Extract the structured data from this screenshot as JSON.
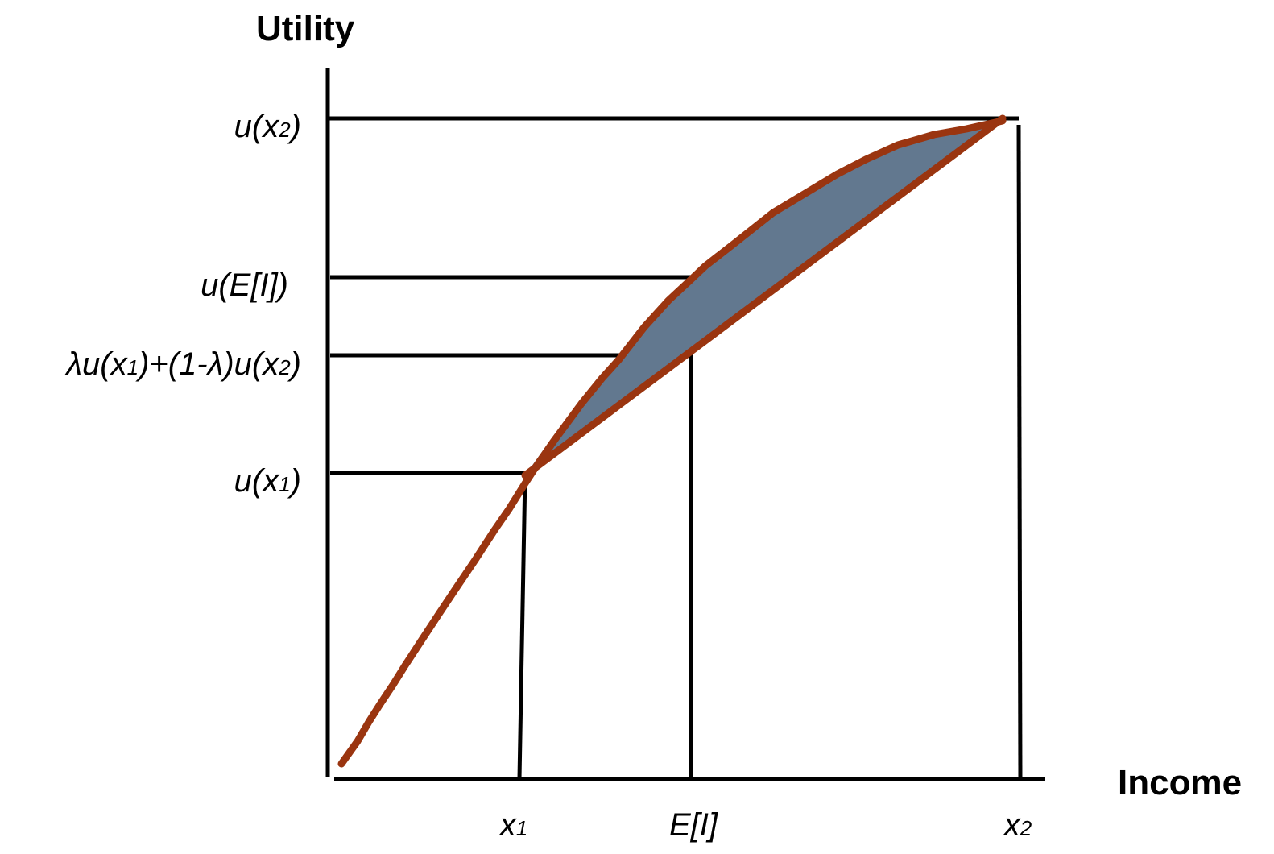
{
  "axes": {
    "y_title": "Utility",
    "x_title": "Income"
  },
  "y_labels": {
    "u_x2": {
      "main": "u(x",
      "sub": "2",
      "tail": ")"
    },
    "u_EI": {
      "text": "u(E[I])"
    },
    "lambda_combo": {
      "part1": "λu(x",
      "sub1": "1",
      "part2": ")+(1-λ)u(x",
      "sub2": "2",
      "part3": ")"
    },
    "u_x1": {
      "main": "u(x",
      "sub": "1",
      "tail": ")"
    }
  },
  "x_labels": {
    "x1": {
      "main": "x",
      "sub": "1"
    },
    "EI": {
      "text": "E[I]"
    },
    "x2": {
      "main": "x",
      "sub": "2"
    }
  },
  "colors": {
    "curve": "#9a3510",
    "shaded_region": "#62788f",
    "lines": "#000000"
  }
}
